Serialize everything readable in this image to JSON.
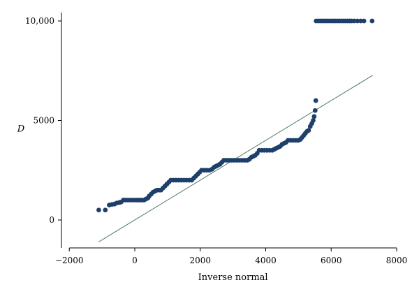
{
  "chart_data": {
    "type": "scatter",
    "xlabel": "Inverse normal",
    "ylabel": "D",
    "xlim": [
      -2200,
      8100
    ],
    "ylim": [
      -1300,
      10500
    ],
    "xticks": [
      {
        "value": -2000,
        "label": "−2000"
      },
      {
        "value": 0,
        "label": "0"
      },
      {
        "value": 2000,
        "label": "2000"
      },
      {
        "value": 4000,
        "label": "4000"
      },
      {
        "value": 6000,
        "label": "6000"
      },
      {
        "value": 8000,
        "label": "8000"
      }
    ],
    "yticks": [
      {
        "value": 0,
        "label": "0"
      },
      {
        "value": 5000,
        "label": "5000"
      },
      {
        "value": 10000,
        "label": "10,000"
      }
    ],
    "colors": {
      "points": "#1f3f6b",
      "reference_line": "#4a7a62"
    },
    "reference_line": {
      "x": [
        -1100,
        7270
      ],
      "y": [
        -1100,
        7270
      ]
    },
    "series": [
      {
        "points": [
          [
            -1100,
            500
          ],
          [
            -900,
            500
          ],
          [
            -780,
            750
          ],
          [
            -700,
            780
          ],
          [
            -620,
            800
          ],
          [
            -550,
            850
          ],
          [
            -470,
            880
          ],
          [
            -420,
            900
          ],
          [
            -350,
            1000
          ],
          [
            -280,
            1000
          ],
          [
            -200,
            1000
          ],
          [
            -120,
            1000
          ],
          [
            -40,
            1000
          ],
          [
            40,
            1000
          ],
          [
            120,
            1000
          ],
          [
            200,
            1000
          ],
          [
            280,
            1000
          ],
          [
            340,
            1050
          ],
          [
            400,
            1100
          ],
          [
            440,
            1200
          ],
          [
            500,
            1300
          ],
          [
            560,
            1400
          ],
          [
            620,
            1450
          ],
          [
            680,
            1500
          ],
          [
            740,
            1500
          ],
          [
            800,
            1500
          ],
          [
            860,
            1600
          ],
          [
            920,
            1700
          ],
          [
            980,
            1800
          ],
          [
            1040,
            1900
          ],
          [
            1100,
            2000
          ],
          [
            1180,
            2000
          ],
          [
            1260,
            2000
          ],
          [
            1340,
            2000
          ],
          [
            1420,
            2000
          ],
          [
            1500,
            2000
          ],
          [
            1580,
            2000
          ],
          [
            1660,
            2000
          ],
          [
            1740,
            2000
          ],
          [
            1800,
            2100
          ],
          [
            1860,
            2200
          ],
          [
            1920,
            2300
          ],
          [
            1980,
            2400
          ],
          [
            2040,
            2500
          ],
          [
            2120,
            2500
          ],
          [
            2200,
            2500
          ],
          [
            2280,
            2500
          ],
          [
            2360,
            2550
          ],
          [
            2420,
            2650
          ],
          [
            2480,
            2700
          ],
          [
            2540,
            2750
          ],
          [
            2600,
            2800
          ],
          [
            2660,
            2900
          ],
          [
            2720,
            3000
          ],
          [
            2800,
            3000
          ],
          [
            2880,
            3000
          ],
          [
            2960,
            3000
          ],
          [
            3040,
            3000
          ],
          [
            3120,
            3000
          ],
          [
            3200,
            3000
          ],
          [
            3280,
            3000
          ],
          [
            3360,
            3000
          ],
          [
            3440,
            3000
          ],
          [
            3500,
            3050
          ],
          [
            3560,
            3150
          ],
          [
            3620,
            3200
          ],
          [
            3680,
            3250
          ],
          [
            3740,
            3350
          ],
          [
            3800,
            3500
          ],
          [
            3880,
            3500
          ],
          [
            3960,
            3500
          ],
          [
            4040,
            3500
          ],
          [
            4120,
            3500
          ],
          [
            4200,
            3500
          ],
          [
            4260,
            3550
          ],
          [
            4320,
            3600
          ],
          [
            4380,
            3650
          ],
          [
            4440,
            3700
          ],
          [
            4500,
            3800
          ],
          [
            4560,
            3850
          ],
          [
            4620,
            3900
          ],
          [
            4680,
            4000
          ],
          [
            4760,
            4000
          ],
          [
            4840,
            4000
          ],
          [
            4920,
            4000
          ],
          [
            5000,
            4000
          ],
          [
            5060,
            4050
          ],
          [
            5110,
            4150
          ],
          [
            5160,
            4250
          ],
          [
            5210,
            4350
          ],
          [
            5260,
            4450
          ],
          [
            5310,
            4500
          ],
          [
            5360,
            4700
          ],
          [
            5410,
            4850
          ],
          [
            5450,
            5000
          ],
          [
            5480,
            5200
          ],
          [
            5510,
            5500
          ],
          [
            5530,
            6000
          ],
          [
            5540,
            10000
          ],
          [
            5600,
            10000
          ],
          [
            5660,
            10000
          ],
          [
            5720,
            10000
          ],
          [
            5780,
            10000
          ],
          [
            5840,
            10000
          ],
          [
            5900,
            10000
          ],
          [
            5960,
            10000
          ],
          [
            6020,
            10000
          ],
          [
            6080,
            10000
          ],
          [
            6140,
            10000
          ],
          [
            6200,
            10000
          ],
          [
            6260,
            10000
          ],
          [
            6320,
            10000
          ],
          [
            6380,
            10000
          ],
          [
            6440,
            10000
          ],
          [
            6500,
            10000
          ],
          [
            6560,
            10000
          ],
          [
            6620,
            10000
          ],
          [
            6700,
            10000
          ],
          [
            6800,
            10000
          ],
          [
            6900,
            10000
          ],
          [
            7000,
            10000
          ],
          [
            7250,
            10000
          ]
        ]
      }
    ]
  }
}
